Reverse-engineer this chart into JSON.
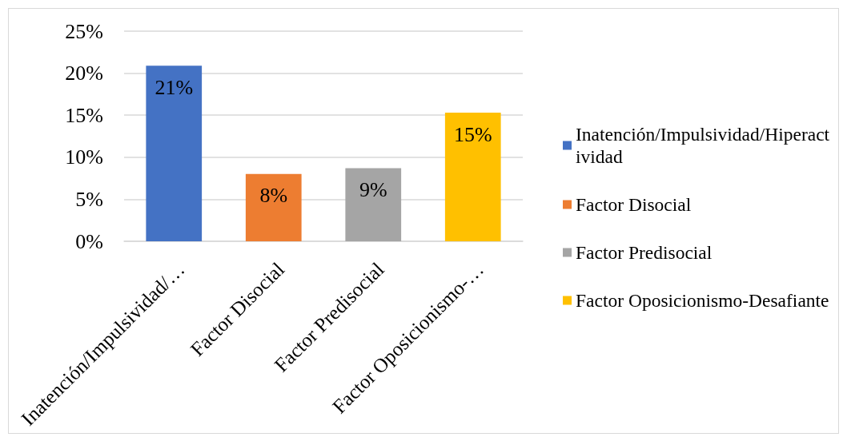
{
  "chart_data": {
    "type": "bar",
    "categories": [
      "Inatención/Impulsividad/…",
      "Factor Disocial",
      "Factor Predisocial",
      "Factor Oposicionismo-…"
    ],
    "series": [
      {
        "name": "Inatención/Impulsividad/Hiperactividad",
        "color": "#4472c4",
        "values": [
          20.9,
          null,
          null,
          null
        ],
        "value_labels": [
          "21%",
          null,
          null,
          null
        ]
      },
      {
        "name": "Factor Disocial",
        "color": "#ed7d31",
        "values": [
          null,
          8.0,
          null,
          null
        ],
        "value_labels": [
          null,
          "8%",
          null,
          null
        ]
      },
      {
        "name": "Factor Predisocial",
        "color": "#a5a5a5",
        "values": [
          null,
          null,
          8.7,
          null
        ],
        "value_labels": [
          null,
          null,
          "9%",
          null
        ]
      },
      {
        "name": "Factor Oposicionismo-Desafiante",
        "color": "#ffc000",
        "values": [
          null,
          null,
          null,
          15.3
        ],
        "value_labels": [
          null,
          null,
          null,
          "15%"
        ]
      }
    ],
    "stacked": true,
    "ylim": [
      0,
      25
    ],
    "yticks": [
      {
        "value": 0,
        "label": "0%"
      },
      {
        "value": 5,
        "label": "5%"
      },
      {
        "value": 10,
        "label": "10%"
      },
      {
        "value": 15,
        "label": "15%"
      },
      {
        "value": 20,
        "label": "20%"
      },
      {
        "value": 25,
        "label": "25%"
      }
    ],
    "grid": "y",
    "legend": "right"
  }
}
